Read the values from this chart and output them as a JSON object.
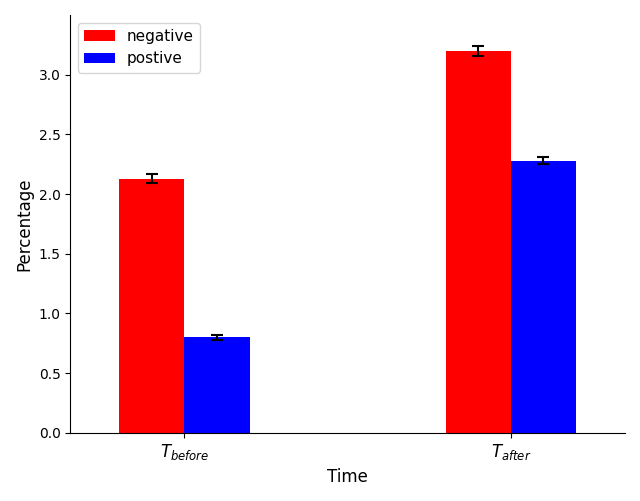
{
  "categories": [
    "$T_{before}$",
    "$T_{after}$"
  ],
  "negative_values": [
    2.13,
    3.2
  ],
  "positive_values": [
    0.8,
    2.28
  ],
  "negative_errors": [
    0.04,
    0.04
  ],
  "positive_errors": [
    0.02,
    0.03
  ],
  "negative_color": "#ff0000",
  "positive_color": "#0000ff",
  "ylabel": "Percentage",
  "xlabel": "Time",
  "ylim": [
    0,
    3.5
  ],
  "yticks": [
    0.0,
    0.5,
    1.0,
    1.5,
    2.0,
    2.5,
    3.0
  ],
  "bar_width": 0.4,
  "group_positions": [
    1.0,
    3.0
  ],
  "legend_labels": [
    "negative",
    "postive"
  ],
  "figsize": [
    6.4,
    5.01
  ],
  "dpi": 100
}
